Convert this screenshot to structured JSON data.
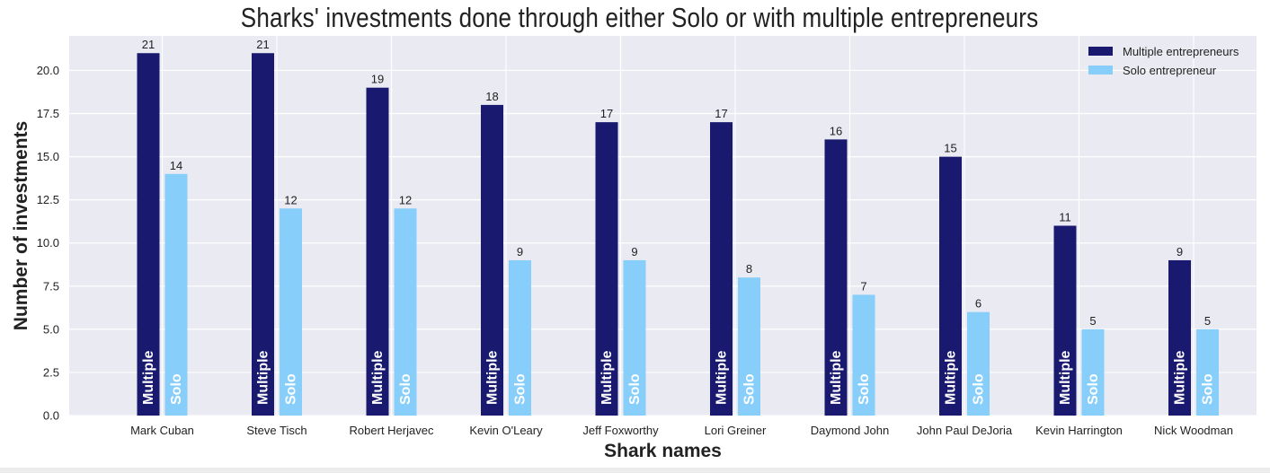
{
  "chart_data": {
    "type": "bar",
    "title": "Sharks' investments done through either Solo or with multiple entrepreneurs",
    "xlabel": "Shark names",
    "ylabel": "Number of investments",
    "categories": [
      "Mark Cuban",
      "Steve Tisch",
      "Robert Herjavec",
      "Kevin O'Leary",
      "Jeff Foxworthy",
      "Lori Greiner",
      "Daymond John",
      "John Paul DeJoria",
      "Kevin Harrington",
      "Nick Woodman"
    ],
    "series": [
      {
        "name": "Multiple entrepreneurs",
        "bar_text": "Multiple",
        "color": "#191970",
        "values": [
          21,
          21,
          19,
          18,
          17,
          17,
          16,
          15,
          11,
          9
        ]
      },
      {
        "name": "Solo entrepreneur",
        "bar_text": "Solo",
        "color": "#87cefa",
        "values": [
          14,
          12,
          12,
          9,
          9,
          8,
          7,
          6,
          5,
          5
        ]
      }
    ],
    "ylim": [
      0,
      22
    ],
    "yticks": [
      "0.0",
      "2.5",
      "5.0",
      "7.5",
      "10.0",
      "12.5",
      "15.0",
      "17.5",
      "20.0"
    ],
    "grid": true,
    "legend_position": "top-right",
    "background_color": "#eaeaf2"
  }
}
